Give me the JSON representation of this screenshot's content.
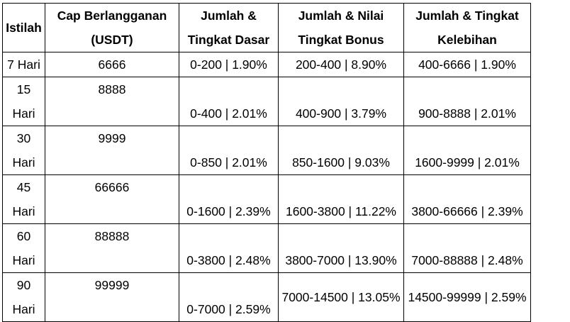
{
  "headers": {
    "term": "Istilah",
    "cap": "Cap Berlangganan (USDT)",
    "base": "Jumlah & Tingkat Dasar",
    "bonus": "Jumlah & Nilai Tingkat Bonus",
    "excess": "Jumlah & Tingkat Kelebihan"
  },
  "rows": [
    {
      "term": "7 Hari",
      "cap": "6666",
      "base": "0-200 | 1.90%",
      "bonus": "200-400 | 8.90%",
      "excess": "400-6666 | 1.90%"
    },
    {
      "term": "15 Hari",
      "cap": "8888",
      "base": "0-400 | 2.01%",
      "bonus": "400-900 | 3.79%",
      "excess": "900-8888 | 2.01%"
    },
    {
      "term": "30 Hari",
      "cap": "9999",
      "base": "0-850 | 2.01%",
      "bonus": "850-1600 | 9.03%",
      "excess": "1600-9999 | 2.01%"
    },
    {
      "term": "45 Hari",
      "cap": "66666",
      "base": "0-1600 | 2.39%",
      "bonus": "1600-3800 | 11.22%",
      "excess": "3800-66666 | 2.39%"
    },
    {
      "term": "60 Hari",
      "cap": "88888",
      "base": "0-3800 | 2.48%",
      "bonus": "3800-7000 | 13.90%",
      "excess": "7000-88888 | 2.48%"
    },
    {
      "term": "90 Hari",
      "cap": "99999",
      "base": "0-7000 | 2.59%",
      "bonus": "7000-14500 | 13.05%",
      "excess": "14500-99999 | 2.59%"
    }
  ]
}
